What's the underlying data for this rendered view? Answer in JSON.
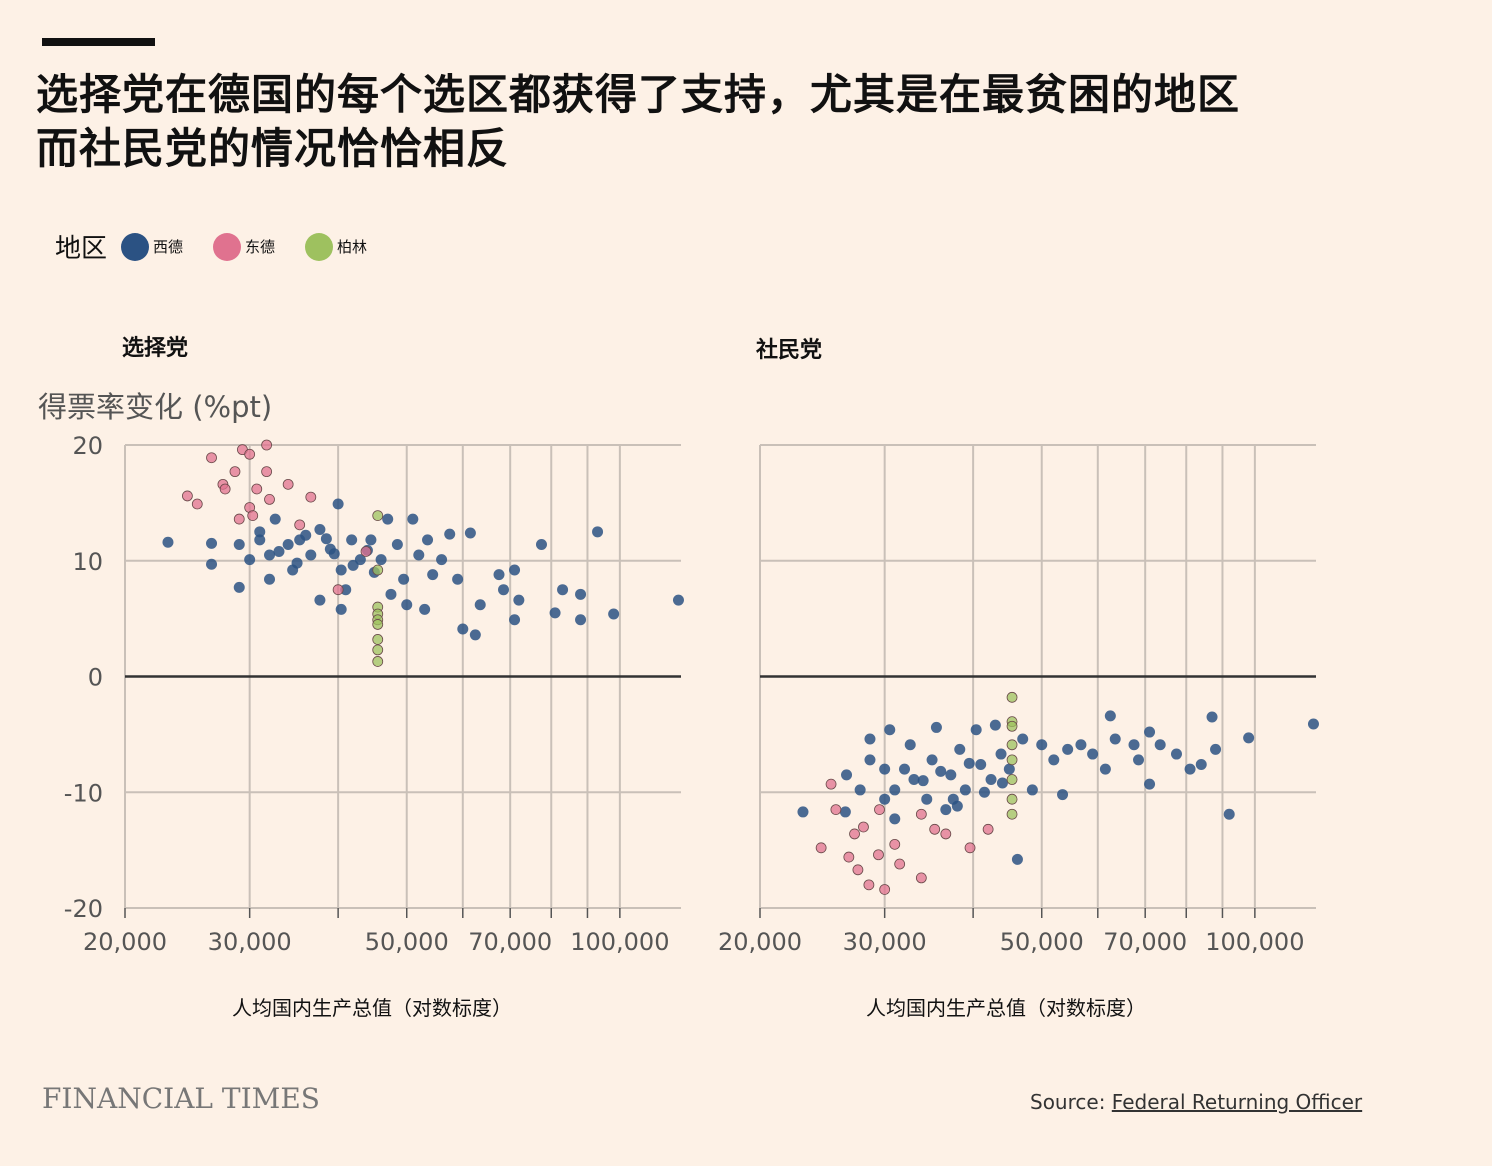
{
  "title_lines": [
    "选择党在德国的每个选区都获得了支持，尤其是在最贫困的地区",
    "而社民党的情况恰恰相反"
  ],
  "legend": {
    "label": "地区",
    "items": [
      {
        "name": "西德",
        "color": "#2b5283"
      },
      {
        "name": "东德",
        "color": "#e0728f"
      },
      {
        "name": "柏林",
        "color": "#9ec15f"
      }
    ]
  },
  "ylabel": "得票率变化 (%pt)",
  "footer": {
    "brand": "FINANCIAL TIMES",
    "source_label": "Source:",
    "source_link": "Federal Returning Officer"
  },
  "chart_data": [
    {
      "type": "scatter",
      "title": "选择党",
      "xlabel": "人均国内生产总值（对数标度）",
      "ylabel": "得票率变化 (%pt)",
      "xscale": "log",
      "xlim": [
        20000,
        122000
      ],
      "ylim": [
        -20,
        20
      ],
      "xticks": [
        20000,
        30000,
        50000,
        70000,
        100000
      ],
      "xtick_labels": [
        "20,000",
        "30,000",
        "50,000",
        "70,000",
        "100,000"
      ],
      "xgrid": [
        20000,
        30000,
        40000,
        50000,
        60000,
        70000,
        80000,
        90000,
        100000
      ],
      "yticks": [
        20,
        10,
        0,
        -10,
        -20
      ],
      "ytick_labels": [
        "20",
        "10",
        "0",
        "-10",
        "-20"
      ],
      "series": [
        {
          "name": "西德",
          "points": [
            [
              23,
              11.6
            ],
            [
              26.5,
              11.5
            ],
            [
              26.5,
              9.7
            ],
            [
              29,
              11.4
            ],
            [
              29,
              7.7
            ],
            [
              30,
              10.1
            ],
            [
              31,
              11.8
            ],
            [
              32,
              10.5
            ],
            [
              32.6,
              13.6
            ],
            [
              34,
              11.4
            ],
            [
              34.5,
              9.2
            ],
            [
              35.3,
              11.8
            ],
            [
              36.6,
              10.5
            ],
            [
              37.7,
              12.7
            ],
            [
              39,
              11
            ],
            [
              40,
              14.9
            ],
            [
              40.4,
              9.2
            ],
            [
              41,
              7.5
            ],
            [
              41.8,
              11.8
            ],
            [
              43,
              10.1
            ],
            [
              44.5,
              11.8
            ],
            [
              46,
              10.1
            ],
            [
              47,
              13.6
            ],
            [
              47.5,
              7.1
            ],
            [
              48.5,
              11.4
            ],
            [
              49.5,
              8.4
            ],
            [
              50,
              6.2
            ],
            [
              51,
              13.6
            ],
            [
              52,
              10.5
            ],
            [
              53.5,
              11.8
            ],
            [
              54.4,
              8.8
            ],
            [
              56,
              10.1
            ],
            [
              57.5,
              12.3
            ],
            [
              59,
              8.4
            ],
            [
              60,
              4.1
            ],
            [
              61.5,
              12.4
            ],
            [
              62.5,
              3.6
            ],
            [
              63.5,
              6.2
            ],
            [
              67.5,
              8.8
            ],
            [
              68.5,
              7.5
            ],
            [
              71,
              9.2
            ],
            [
              71,
              4.9
            ],
            [
              72,
              6.6
            ],
            [
              77.5,
              11.4
            ],
            [
              81,
              5.5
            ],
            [
              83,
              7.5
            ],
            [
              88,
              7.1
            ],
            [
              88,
              4.9
            ],
            [
              93,
              12.5
            ],
            [
              98,
              5.4
            ],
            [
              121,
              6.6
            ],
            [
              53,
              5.8
            ],
            [
              40.4,
              5.8
            ],
            [
              37.7,
              6.6
            ],
            [
              32,
              8.4
            ],
            [
              31,
              12.5
            ],
            [
              33,
              10.8
            ],
            [
              35,
              9.8
            ],
            [
              38.5,
              11.9
            ],
            [
              42,
              9.6
            ],
            [
              45,
              9
            ],
            [
              36,
              12.2
            ],
            [
              39.5,
              10.6
            ],
            [
              44,
              10.9
            ]
          ]
        },
        {
          "name": "东德",
          "points": [
            [
              24.5,
              15.6
            ],
            [
              26.5,
              18.9
            ],
            [
              27.5,
              16.6
            ],
            [
              28.6,
              17.7
            ],
            [
              29.3,
              19.6
            ],
            [
              30,
              19.2
            ],
            [
              31.7,
              20
            ],
            [
              30,
              14.6
            ],
            [
              30.7,
              16.2
            ],
            [
              29,
              13.6
            ],
            [
              31.7,
              17.7
            ],
            [
              34,
              16.6
            ],
            [
              36.6,
              15.5
            ],
            [
              32,
              15.3
            ],
            [
              35.3,
              13.1
            ],
            [
              40,
              7.5
            ],
            [
              43.8,
              10.8
            ],
            [
              25.3,
              14.9
            ],
            [
              27.7,
              16.2
            ],
            [
              30.3,
              13.9
            ]
          ]
        },
        {
          "name": "柏林",
          "points": [
            [
              45.5,
              13.9
            ],
            [
              45.5,
              9.2
            ],
            [
              45.5,
              6
            ],
            [
              45.5,
              5.4
            ],
            [
              45.5,
              4.9
            ],
            [
              45.5,
              4.5
            ],
            [
              45.5,
              3.2
            ],
            [
              45.5,
              2.3
            ],
            [
              45.5,
              1.3
            ]
          ]
        }
      ]
    },
    {
      "type": "scatter",
      "title": "社民党",
      "xlabel": "人均国内生产总值（对数标度）",
      "ylabel": "得票率变化 (%pt)",
      "xscale": "log",
      "xlim": [
        20000,
        122000
      ],
      "ylim": [
        -20,
        20
      ],
      "xticks": [
        20000,
        30000,
        50000,
        70000,
        100000
      ],
      "xtick_labels": [
        "20,000",
        "30,000",
        "50,000",
        "70,000",
        "100,000"
      ],
      "xgrid": [
        20000,
        30000,
        40000,
        50000,
        60000,
        70000,
        80000,
        90000,
        100000
      ],
      "yticks": [
        20,
        10,
        0,
        -10,
        -20
      ],
      "ytick_labels": [],
      "series": [
        {
          "name": "西德",
          "points": [
            [
              23,
              -11.7
            ],
            [
              26.4,
              -11.7
            ],
            [
              26.5,
              -8.5
            ],
            [
              27.7,
              -9.8
            ],
            [
              28.6,
              -7.2
            ],
            [
              30,
              -8
            ],
            [
              30,
              -10.6
            ],
            [
              30.5,
              -4.6
            ],
            [
              31,
              -12.3
            ],
            [
              31,
              -9.8
            ],
            [
              32.6,
              -5.9
            ],
            [
              33,
              -8.9
            ],
            [
              34.4,
              -10.6
            ],
            [
              35,
              -7.2
            ],
            [
              35.5,
              -4.4
            ],
            [
              36.6,
              -11.5
            ],
            [
              37.2,
              -8.5
            ],
            [
              38.3,
              -6.3
            ],
            [
              39,
              -9.8
            ],
            [
              40.4,
              -4.6
            ],
            [
              41,
              -7.6
            ],
            [
              42.4,
              -8.9
            ],
            [
              43,
              -4.2
            ],
            [
              43.8,
              -6.7
            ],
            [
              45,
              -8
            ],
            [
              46.2,
              -15.8
            ],
            [
              47,
              -5.4
            ],
            [
              48.5,
              -9.8
            ],
            [
              50,
              -5.9
            ],
            [
              52,
              -7.2
            ],
            [
              53.5,
              -10.2
            ],
            [
              54.4,
              -6.3
            ],
            [
              56.8,
              -5.9
            ],
            [
              59,
              -6.7
            ],
            [
              61.5,
              -8
            ],
            [
              62.5,
              -3.4
            ],
            [
              63.5,
              -5.4
            ],
            [
              67.5,
              -5.9
            ],
            [
              68.5,
              -7.2
            ],
            [
              71,
              -4.8
            ],
            [
              71,
              -9.3
            ],
            [
              73.5,
              -5.9
            ],
            [
              77.5,
              -6.7
            ],
            [
              81,
              -8
            ],
            [
              84,
              -7.6
            ],
            [
              87,
              -3.5
            ],
            [
              88,
              -6.3
            ],
            [
              92,
              -11.9
            ],
            [
              98,
              -5.3
            ],
            [
              121,
              -4.1
            ],
            [
              37.5,
              -10.6
            ],
            [
              32,
              -8
            ],
            [
              28.6,
              -5.4
            ],
            [
              34,
              -9
            ],
            [
              36,
              -8.2
            ],
            [
              39.5,
              -7.5
            ],
            [
              41.5,
              -10
            ],
            [
              44,
              -9.2
            ],
            [
              38,
              -11.2
            ]
          ]
        },
        {
          "name": "东德",
          "points": [
            [
              24.4,
              -14.8
            ],
            [
              25.6,
              -11.5
            ],
            [
              26.7,
              -15.6
            ],
            [
              27.2,
              -13.6
            ],
            [
              27.5,
              -16.7
            ],
            [
              28,
              -13
            ],
            [
              28.5,
              -18
            ],
            [
              29.4,
              -15.4
            ],
            [
              30,
              -18.4
            ],
            [
              31,
              -14.5
            ],
            [
              31.5,
              -16.2
            ],
            [
              33.8,
              -17.4
            ],
            [
              35.3,
              -13.2
            ],
            [
              36.6,
              -13.6
            ],
            [
              39.6,
              -14.8
            ],
            [
              42,
              -13.2
            ],
            [
              25.2,
              -9.3
            ],
            [
              29.5,
              -11.5
            ],
            [
              33.8,
              -11.9
            ]
          ]
        },
        {
          "name": "柏林",
          "points": [
            [
              45.4,
              -1.8
            ],
            [
              45.4,
              -3.9
            ],
            [
              45.4,
              -4.3
            ],
            [
              45.4,
              -5.9
            ],
            [
              45.4,
              -7.2
            ],
            [
              45.4,
              -8.9
            ],
            [
              45.4,
              -10.6
            ],
            [
              45.4,
              -11.9
            ]
          ]
        }
      ]
    }
  ]
}
